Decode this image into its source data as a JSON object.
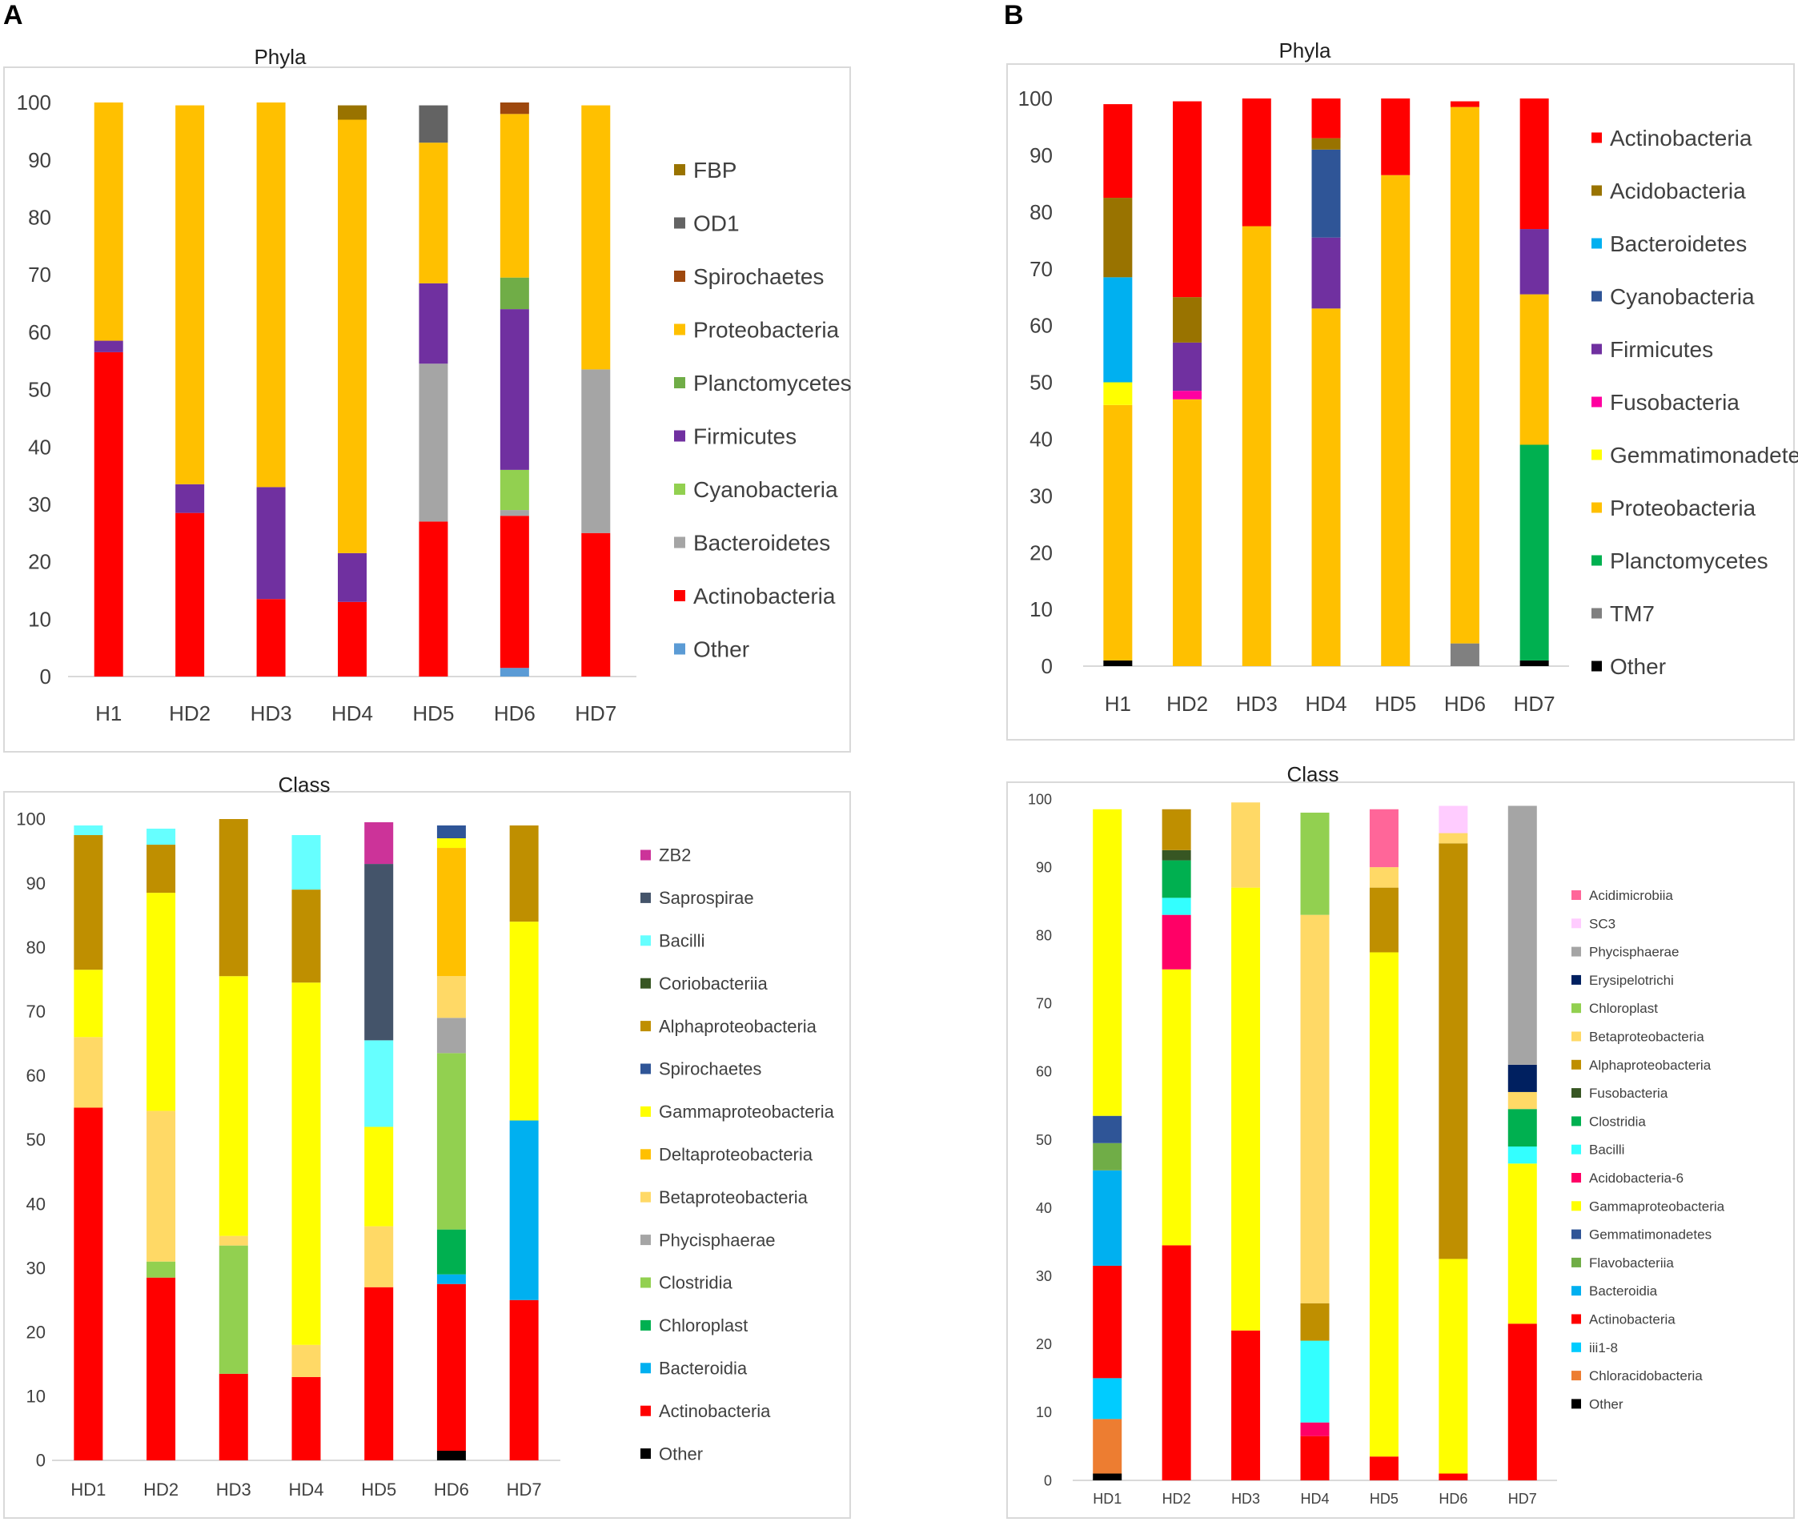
{
  "panels": {
    "a_label": "A",
    "b_label": "B"
  },
  "chart_data": [
    {
      "id": "A-phyla",
      "type": "bar",
      "stacked": true,
      "title": "Phyla",
      "categories": [
        "H1",
        "HD2",
        "HD3",
        "HD4",
        "HD5",
        "HD6",
        "HD7"
      ],
      "ylim": [
        0,
        100
      ],
      "yticks": [
        0,
        10,
        20,
        30,
        40,
        50,
        60,
        70,
        80,
        90,
        100
      ],
      "series": [
        {
          "name": "Other",
          "color": "#5b9bd5",
          "values": [
            0,
            0,
            0,
            0,
            0,
            1.5,
            0
          ]
        },
        {
          "name": "Actinobacteria",
          "color": "#ff0000",
          "values": [
            56.5,
            28.5,
            13.5,
            13,
            27,
            26.5,
            25
          ]
        },
        {
          "name": "Bacteroidetes",
          "color": "#a5a5a5",
          "values": [
            0,
            0,
            0,
            0,
            27.5,
            1,
            28.5
          ]
        },
        {
          "name": "Cyanobacteria",
          "color": "#92d050",
          "values": [
            0,
            0,
            0,
            0,
            0,
            7,
            0
          ]
        },
        {
          "name": "Firmicutes",
          "color": "#7030a0",
          "values": [
            2,
            5,
            19.5,
            8.5,
            14,
            28,
            0
          ]
        },
        {
          "name": "Planctomycetes",
          "color": "#70ad47",
          "values": [
            0,
            0,
            0,
            0,
            0,
            5.5,
            0
          ]
        },
        {
          "name": "Proteobacteria",
          "color": "#ffc000",
          "values": [
            41.5,
            66,
            67,
            75.5,
            24.5,
            28.5,
            46
          ]
        },
        {
          "name": "Spirochaetes",
          "color": "#9e480e",
          "values": [
            0,
            0,
            0,
            0,
            0,
            2,
            0
          ]
        },
        {
          "name": "OD1",
          "color": "#636363",
          "values": [
            0,
            0,
            0,
            0,
            6.5,
            0,
            0
          ]
        },
        {
          "name": "FBP",
          "color": "#997300",
          "values": [
            0,
            0,
            0,
            2.5,
            0,
            0,
            0
          ]
        }
      ],
      "legend": [
        "FBP",
        "OD1",
        "Spirochaetes",
        "Proteobacteria",
        "Planctomycetes",
        "Firmicutes",
        "Cyanobacteria",
        "Bacteroidetes",
        "Actinobacteria",
        "Other"
      ]
    },
    {
      "id": "B-phyla",
      "type": "bar",
      "stacked": true,
      "title": "Phyla",
      "categories": [
        "H1",
        "HD2",
        "HD3",
        "HD4",
        "HD5",
        "HD6",
        "HD7"
      ],
      "ylim": [
        0,
        100
      ],
      "yticks": [
        0,
        10,
        20,
        30,
        40,
        50,
        60,
        70,
        80,
        90,
        100
      ],
      "series": [
        {
          "name": "Other",
          "color": "#000000",
          "values": [
            1,
            0,
            0,
            0,
            0,
            0,
            1
          ]
        },
        {
          "name": "TM7",
          "color": "#808080",
          "values": [
            0,
            0,
            0,
            0,
            0,
            4,
            0
          ]
        },
        {
          "name": "Planctomycetes",
          "color": "#00b050",
          "values": [
            0,
            0,
            0,
            0,
            0,
            0,
            38
          ]
        },
        {
          "name": "Proteobacteria",
          "color": "#ffc000",
          "values": [
            45,
            47,
            77.5,
            63,
            86.5,
            94.5,
            26.5
          ]
        },
        {
          "name": "Gemmatimonadetes",
          "color": "#ffff00",
          "values": [
            4,
            0,
            0,
            0,
            0,
            0,
            0
          ]
        },
        {
          "name": "Fusobacteria",
          "color": "#ff00a0",
          "values": [
            0,
            1.5,
            0,
            0,
            0,
            0,
            0
          ]
        },
        {
          "name": "Firmicutes",
          "color": "#7030a0",
          "values": [
            0,
            8.5,
            0,
            12.5,
            0,
            0,
            11.5
          ]
        },
        {
          "name": "Cyanobacteria",
          "color": "#2f5597",
          "values": [
            0,
            0,
            0,
            15.5,
            0,
            0,
            0
          ]
        },
        {
          "name": "Bacteroidetes",
          "color": "#00b0f0",
          "values": [
            18.5,
            0,
            0,
            0,
            0,
            0,
            0
          ]
        },
        {
          "name": "Acidobacteria",
          "color": "#997300",
          "values": [
            14,
            8,
            0,
            2,
            0,
            0,
            0
          ]
        },
        {
          "name": "Actinobacteria",
          "color": "#ff0000",
          "values": [
            16.5,
            34.5,
            22.5,
            7,
            13.5,
            1,
            23
          ]
        }
      ],
      "legend": [
        "Actinobacteria",
        "Acidobacteria",
        "Bacteroidetes",
        "Cyanobacteria",
        "Firmicutes",
        "Fusobacteria",
        "Gemmatimonadetes",
        "Proteobacteria",
        "Planctomycetes",
        "TM7",
        "Other"
      ]
    },
    {
      "id": "A-class",
      "type": "bar",
      "stacked": true,
      "title": "Class",
      "categories": [
        "HD1",
        "HD2",
        "HD3",
        "HD4",
        "HD5",
        "HD6",
        "HD7"
      ],
      "ylim": [
        0,
        100
      ],
      "yticks": [
        0,
        10,
        20,
        30,
        40,
        50,
        60,
        70,
        80,
        90,
        100
      ],
      "series": [
        {
          "name": "Other",
          "color": "#000000",
          "values": [
            0,
            0,
            0,
            0,
            0,
            1.5,
            0
          ]
        },
        {
          "name": "Actinobacteria",
          "color": "#ff0000",
          "values": [
            55,
            28.5,
            13.5,
            13,
            27,
            26,
            25
          ]
        },
        {
          "name": "Bacteroidia",
          "color": "#00b0f0",
          "values": [
            0,
            0,
            0,
            0,
            0,
            1.5,
            28
          ]
        },
        {
          "name": "Chloroplast",
          "color": "#00b050",
          "values": [
            0,
            0,
            0,
            0,
            0,
            7,
            0
          ]
        },
        {
          "name": "Clostridia",
          "color": "#92d050",
          "values": [
            0,
            2.5,
            20,
            0,
            0,
            27.5,
            0
          ]
        },
        {
          "name": "Phycisphaerae",
          "color": "#a5a5a5",
          "values": [
            0,
            0,
            0,
            0,
            0,
            5.5,
            0
          ]
        },
        {
          "name": "Betaproteobacteria",
          "color": "#ffd966",
          "values": [
            11,
            23.5,
            1.5,
            5,
            9.5,
            6.5,
            0
          ]
        },
        {
          "name": "Deltaproteobacteria",
          "color": "#ffc000",
          "values": [
            0,
            0,
            0,
            0,
            0,
            20,
            0
          ]
        },
        {
          "name": "Gammaproteobacteria",
          "color": "#ffff00",
          "values": [
            10.5,
            34,
            40.5,
            56.5,
            15.5,
            1.5,
            31
          ]
        },
        {
          "name": "Spirochaetes",
          "color": "#2f5597",
          "values": [
            0,
            0,
            0,
            0,
            0,
            2,
            0
          ]
        },
        {
          "name": "Alphaproteobacteria",
          "color": "#bf8f00",
          "values": [
            21,
            7.5,
            24.5,
            14.5,
            0,
            0,
            15
          ]
        },
        {
          "name": "Coriobacteriia",
          "color": "#375623",
          "values": [
            0,
            0,
            0,
            0,
            0,
            0,
            0
          ]
        },
        {
          "name": "Bacilli",
          "color": "#66ffff",
          "values": [
            1.5,
            2.5,
            0,
            8.5,
            13.5,
            0,
            0
          ]
        },
        {
          "name": "Saprospirae",
          "color": "#44546a",
          "values": [
            0,
            0,
            0,
            0,
            27.5,
            0,
            0
          ]
        },
        {
          "name": "ZB2",
          "color": "#cc3399",
          "values": [
            0,
            0,
            0,
            0,
            6.5,
            0,
            0
          ]
        }
      ],
      "legend": [
        "ZB2",
        "Saprospirae",
        "Bacilli",
        "Coriobacteriia",
        "Alphaproteobacteria",
        "Spirochaetes",
        "Gammaproteobacteria",
        "Deltaproteobacteria",
        "Betaproteobacteria",
        "Phycisphaerae",
        "Clostridia",
        "Chloroplast",
        "Bacteroidia",
        "Actinobacteria",
        "Other"
      ]
    },
    {
      "id": "B-class",
      "type": "bar",
      "stacked": true,
      "title": "Class",
      "categories": [
        "HD1",
        "HD2",
        "HD3",
        "HD4",
        "HD5",
        "HD6",
        "HD7"
      ],
      "ylim": [
        0,
        100
      ],
      "yticks": [
        0,
        10,
        20,
        30,
        40,
        50,
        60,
        70,
        80,
        90,
        100
      ],
      "series": [
        {
          "name": "Other",
          "color": "#000000",
          "values": [
            1,
            0,
            0,
            0,
            0,
            0,
            0
          ]
        },
        {
          "name": "Chloracidobacteria",
          "color": "#ed7d31",
          "values": [
            8,
            0,
            0,
            0,
            0,
            0,
            0
          ]
        },
        {
          "name": "iii1-8",
          "color": "#00ccff",
          "values": [
            6,
            0,
            0,
            0,
            0,
            0,
            0
          ]
        },
        {
          "name": "Actinobacteria",
          "color": "#ff0000",
          "values": [
            16.5,
            34.5,
            22,
            6.5,
            3.5,
            1,
            23
          ]
        },
        {
          "name": "Bacteroidia",
          "color": "#00b0f0",
          "values": [
            14,
            0,
            0,
            0,
            0,
            0,
            0
          ]
        },
        {
          "name": "Flavobacteriia",
          "color": "#70ad47",
          "values": [
            4,
            0,
            0,
            0,
            0,
            0,
            0
          ]
        },
        {
          "name": "Gemmatimonadetes",
          "color": "#2f5597",
          "values": [
            4,
            0,
            0,
            0,
            0,
            0,
            0
          ]
        },
        {
          "name": "Gammaproteobacteria",
          "color": "#ffff00",
          "values": [
            45,
            40.5,
            65,
            0,
            74,
            31.5,
            23.5
          ]
        },
        {
          "name": "Acidobacteria-6",
          "color": "#ff0066",
          "values": [
            0,
            8,
            0,
            2,
            0,
            0,
            0
          ]
        },
        {
          "name": "Bacilli",
          "color": "#33ffff",
          "values": [
            0,
            2.5,
            0,
            12,
            0,
            0,
            2.5
          ]
        },
        {
          "name": "Clostridia",
          "color": "#00b050",
          "values": [
            0,
            5.5,
            0,
            0,
            0,
            0,
            5.5
          ]
        },
        {
          "name": "Fusobacteria",
          "color": "#375623",
          "values": [
            0,
            1.5,
            0,
            0,
            0,
            0,
            0
          ]
        },
        {
          "name": "Alphaproteobacteria",
          "color": "#bf8f00",
          "values": [
            0,
            6,
            0,
            5.5,
            9.5,
            61,
            0
          ]
        },
        {
          "name": "Betaproteobacteria",
          "color": "#ffd966",
          "values": [
            0,
            0,
            12.5,
            57,
            3,
            1.5,
            2.5
          ]
        },
        {
          "name": "Chloroplast",
          "color": "#92d050",
          "values": [
            0,
            0,
            0,
            15,
            0,
            0,
            0
          ]
        },
        {
          "name": "Erysipelotrichi",
          "color": "#002060",
          "values": [
            0,
            0,
            0,
            0,
            0,
            0,
            4
          ]
        },
        {
          "name": "Phycisphaerae",
          "color": "#a5a5a5",
          "values": [
            0,
            0,
            0,
            0,
            0,
            0,
            38
          ]
        },
        {
          "name": "SC3",
          "color": "#ffccff",
          "values": [
            0,
            0,
            0,
            0,
            0,
            4,
            0
          ]
        },
        {
          "name": "Acidimicrobiia",
          "color": "#ff6699",
          "values": [
            0,
            0,
            0,
            0,
            8.5,
            0,
            0
          ]
        }
      ],
      "legend": [
        "Acidimicrobiia",
        "SC3",
        "Phycisphaerae",
        "Erysipelotrichi",
        "Chloroplast",
        "Betaproteobacteria",
        "Alphaproteobacteria",
        "Fusobacteria",
        "Clostridia",
        "Bacilli",
        "Acidobacteria-6",
        "Gammaproteobacteria",
        "Gemmatimonadetes",
        "Flavobacteriia",
        "Bacteroidia",
        "Actinobacteria",
        "iii1-8",
        "Chloracidobacteria",
        "Other"
      ]
    }
  ]
}
